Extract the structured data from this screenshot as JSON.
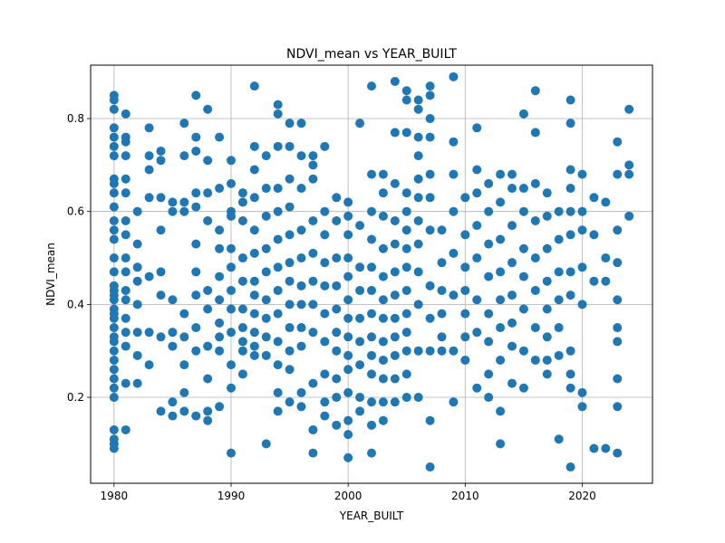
{
  "chart_data": {
    "type": "scatter",
    "title": "NDVI_mean vs YEAR_BUILT",
    "xlabel": "YEAR_BUILT",
    "ylabel": "NDVI_mean",
    "xlim": [
      1978,
      2026
    ],
    "ylim": [
      0.015,
      0.915
    ],
    "x_ticks": [
      1980,
      1990,
      2000,
      2010,
      2020
    ],
    "y_ticks": [
      0.2,
      0.4,
      0.6,
      0.8
    ],
    "y_tick_labels": [
      "0.2",
      "0.4",
      "0.6",
      "0.8"
    ],
    "grid": true,
    "marker_color": "#1f77b4",
    "series": [
      {
        "x": [
          1980,
          1980,
          1980,
          1980,
          1980,
          1980,
          1980,
          1980,
          1980,
          1980,
          1980,
          1980,
          1980,
          1980,
          1980,
          1980,
          1980,
          1980,
          1980,
          1980,
          1980,
          1980,
          1980,
          1980,
          1980,
          1980,
          1980,
          1980,
          1980,
          1980,
          1980,
          1980,
          1980,
          1980,
          1980,
          1980,
          1981,
          1981,
          1981,
          1981,
          1981,
          1981,
          1981,
          1981,
          1981,
          1981,
          1981,
          1981,
          1981,
          1981,
          1981,
          1981,
          1981,
          1982,
          1982,
          1982,
          1982,
          1982,
          1982,
          1982,
          1982,
          1983,
          1983,
          1983,
          1983,
          1983,
          1983,
          1983,
          1984,
          1984,
          1984,
          1984,
          1984,
          1984,
          1984,
          1984,
          1985,
          1985,
          1985,
          1985,
          1985,
          1985,
          1985,
          1986,
          1986,
          1986,
          1986,
          1986,
          1986,
          1986,
          1986,
          1986,
          1987,
          1987,
          1987,
          1987,
          1987,
          1987,
          1987,
          1987,
          1987,
          1987,
          1987,
          1988,
          1988,
          1988,
          1988,
          1988,
          1988,
          1988,
          1988,
          1988,
          1988,
          1989,
          1989,
          1989,
          1989,
          1989,
          1989,
          1989,
          1989,
          1989,
          1989,
          1990,
          1990,
          1990,
          1990,
          1990,
          1990,
          1990,
          1990,
          1990,
          1990,
          1990,
          1990,
          1991,
          1991,
          1991,
          1991,
          1991,
          1991,
          1991,
          1991,
          1991,
          1991,
          1992,
          1992,
          1992,
          1992,
          1992,
          1992,
          1992,
          1992,
          1992,
          1992,
          1992,
          1992,
          1993,
          1993,
          1993,
          1993,
          1993,
          1993,
          1993,
          1993,
          1993,
          1993,
          1994,
          1994,
          1994,
          1994,
          1994,
          1994,
          1994,
          1994,
          1994,
          1994,
          1994,
          1994,
          1994,
          1995,
          1995,
          1995,
          1995,
          1995,
          1995,
          1995,
          1995,
          1995,
          1995,
          1995,
          1995,
          1996,
          1996,
          1996,
          1996,
          1996,
          1996,
          1996,
          1996,
          1996,
          1996,
          1996,
          1997,
          1997,
          1997,
          1997,
          1997,
          1997,
          1997,
          1997,
          1997,
          1997,
          1997,
          1998,
          1998,
          1998,
          1998,
          1998,
          1998,
          1998,
          1998,
          1998,
          1998,
          1999,
          1999,
          1999,
          1999,
          1999,
          1999,
          1999,
          1999,
          1999,
          1999,
          2000,
          2000,
          2000,
          2000,
          2000,
          2000,
          2000,
          2000,
          2000,
          2000,
          2000,
          2000,
          2000,
          2000,
          2001,
          2001,
          2001,
          2001,
          2001,
          2001,
          2001,
          2001,
          2001,
          2002,
          2002,
          2002,
          2002,
          2002,
          2002,
          2002,
          2002,
          2002,
          2002,
          2002,
          2002,
          2002,
          2003,
          2003,
          2003,
          2003,
          2003,
          2003,
          2003,
          2003,
          2003,
          2003,
          2003,
          2003,
          2004,
          2004,
          2004,
          2004,
          2004,
          2004,
          2004,
          2004,
          2004,
          2004,
          2004,
          2004,
          2005,
          2005,
          2005,
          2005,
          2005,
          2005,
          2005,
          2005,
          2005,
          2005,
          2005,
          2005,
          2005,
          2005,
          2006,
          2006,
          2006,
          2006,
          2006,
          2006,
          2006,
          2006,
          2006,
          2006,
          2006,
          2006,
          2007,
          2007,
          2007,
          2007,
          2007,
          2007,
          2007,
          2007,
          2007,
          2007,
          2007,
          2007,
          2008,
          2008,
          2008,
          2008,
          2008,
          2008,
          2009,
          2009,
          2009,
          2009,
          2009,
          2009,
          2009,
          2009,
          2010,
          2010,
          2010,
          2010,
          2010,
          2010,
          2010,
          2011,
          2011,
          2011,
          2011,
          2011,
          2011,
          2011,
          2011,
          2012,
          2012,
          2012,
          2012,
          2012,
          2012,
          2012,
          2012,
          2013,
          2013,
          2013,
          2013,
          2013,
          2013,
          2013,
          2013,
          2013,
          2014,
          2014,
          2014,
          2014,
          2014,
          2014,
          2014,
          2014,
          2015,
          2015,
          2015,
          2015,
          2015,
          2015,
          2015,
          2015,
          2016,
          2016,
          2016,
          2016,
          2016,
          2016,
          2016,
          2016,
          2017,
          2017,
          2017,
          2017,
          2017,
          2017,
          2017,
          2017,
          2018,
          2018,
          2018,
          2018,
          2018,
          2018,
          2018,
          2019,
          2019,
          2019,
          2019,
          2019,
          2019,
          2019,
          2019,
          2019,
          2019,
          2019,
          2019,
          2020,
          2020,
          2020,
          2020,
          2020,
          2020,
          2020,
          2021,
          2021,
          2021,
          2021,
          2022,
          2022,
          2022,
          2022,
          2023,
          2023,
          2023,
          2023,
          2023,
          2023,
          2023,
          2023,
          2023,
          2023,
          2024,
          2024,
          2024,
          2024
        ],
        "y": [
          0.85,
          0.84,
          0.82,
          0.78,
          0.76,
          0.74,
          0.72,
          0.67,
          0.66,
          0.64,
          0.61,
          0.58,
          0.56,
          0.54,
          0.5,
          0.47,
          0.44,
          0.43,
          0.42,
          0.39,
          0.38,
          0.37,
          0.35,
          0.33,
          0.32,
          0.3,
          0.28,
          0.26,
          0.24,
          0.22,
          0.2,
          0.13,
          0.11,
          0.1,
          0.09,
          0.41,
          0.81,
          0.76,
          0.75,
          0.72,
          0.67,
          0.64,
          0.58,
          0.55,
          0.5,
          0.47,
          0.43,
          0.41,
          0.37,
          0.34,
          0.31,
          0.23,
          0.13,
          0.6,
          0.53,
          0.48,
          0.45,
          0.4,
          0.34,
          0.29,
          0.23,
          0.78,
          0.72,
          0.69,
          0.63,
          0.46,
          0.34,
          0.27,
          0.73,
          0.71,
          0.63,
          0.56,
          0.47,
          0.42,
          0.33,
          0.17,
          0.62,
          0.6,
          0.41,
          0.34,
          0.31,
          0.19,
          0.16,
          0.79,
          0.72,
          0.62,
          0.6,
          0.38,
          0.33,
          0.27,
          0.21,
          0.17,
          0.85,
          0.76,
          0.73,
          0.64,
          0.61,
          0.53,
          0.47,
          0.42,
          0.35,
          0.3,
          0.16,
          0.82,
          0.71,
          0.64,
          0.58,
          0.43,
          0.39,
          0.31,
          0.24,
          0.17,
          0.15,
          0.76,
          0.65,
          0.56,
          0.52,
          0.46,
          0.41,
          0.36,
          0.33,
          0.3,
          0.18,
          0.71,
          0.66,
          0.59,
          0.52,
          0.48,
          0.43,
          0.39,
          0.34,
          0.27,
          0.22,
          0.08,
          0.6,
          0.64,
          0.58,
          0.5,
          0.45,
          0.39,
          0.35,
          0.32,
          0.3,
          0.25,
          0.62,
          0.87,
          0.74,
          0.69,
          0.63,
          0.56,
          0.51,
          0.45,
          0.42,
          0.38,
          0.34,
          0.31,
          0.29,
          0.72,
          0.65,
          0.59,
          0.52,
          0.47,
          0.41,
          0.37,
          0.33,
          0.29,
          0.1,
          0.83,
          0.81,
          0.74,
          0.65,
          0.6,
          0.54,
          0.48,
          0.43,
          0.38,
          0.32,
          0.27,
          0.21,
          0.17,
          0.79,
          0.74,
          0.67,
          0.61,
          0.55,
          0.49,
          0.45,
          0.4,
          0.35,
          0.3,
          0.26,
          0.19,
          0.79,
          0.72,
          0.65,
          0.56,
          0.5,
          0.44,
          0.4,
          0.35,
          0.31,
          0.21,
          0.18,
          0.72,
          0.7,
          0.67,
          0.58,
          0.51,
          0.45,
          0.4,
          0.34,
          0.23,
          0.13,
          0.08,
          0.74,
          0.6,
          0.55,
          0.49,
          0.44,
          0.38,
          0.32,
          0.25,
          0.19,
          0.16,
          0.63,
          0.58,
          0.5,
          0.44,
          0.39,
          0.34,
          0.3,
          0.24,
          0.2,
          0.14,
          0.62,
          0.59,
          0.55,
          0.5,
          0.46,
          0.41,
          0.37,
          0.33,
          0.29,
          0.26,
          0.21,
          0.15,
          0.12,
          0.07,
          0.79,
          0.57,
          0.48,
          0.43,
          0.37,
          0.32,
          0.27,
          0.2,
          0.17,
          0.87,
          0.68,
          0.6,
          0.54,
          0.48,
          0.43,
          0.38,
          0.33,
          0.29,
          0.25,
          0.19,
          0.14,
          0.08,
          0.68,
          0.64,
          0.59,
          0.52,
          0.46,
          0.41,
          0.37,
          0.32,
          0.28,
          0.24,
          0.19,
          0.15,
          0.88,
          0.77,
          0.66,
          0.58,
          0.53,
          0.47,
          0.42,
          0.37,
          0.33,
          0.29,
          0.24,
          0.19,
          0.86,
          0.84,
          0.77,
          0.64,
          0.6,
          0.56,
          0.52,
          0.48,
          0.43,
          0.38,
          0.34,
          0.3,
          0.25,
          0.2,
          0.84,
          0.82,
          0.76,
          0.72,
          0.67,
          0.63,
          0.58,
          0.53,
          0.47,
          0.4,
          0.3,
          0.2,
          0.87,
          0.85,
          0.8,
          0.76,
          0.68,
          0.63,
          0.56,
          0.44,
          0.37,
          0.3,
          0.15,
          0.05,
          0.56,
          0.49,
          0.43,
          0.38,
          0.33,
          0.3,
          0.89,
          0.75,
          0.68,
          0.6,
          0.51,
          0.42,
          0.3,
          0.19,
          0.63,
          0.55,
          0.48,
          0.43,
          0.38,
          0.33,
          0.28,
          0.78,
          0.69,
          0.64,
          0.57,
          0.5,
          0.41,
          0.34,
          0.22,
          0.66,
          0.6,
          0.53,
          0.46,
          0.38,
          0.32,
          0.25,
          0.2,
          0.68,
          0.62,
          0.54,
          0.47,
          0.41,
          0.35,
          0.28,
          0.17,
          0.1,
          0.68,
          0.65,
          0.57,
          0.49,
          0.42,
          0.36,
          0.31,
          0.23,
          0.81,
          0.65,
          0.6,
          0.52,
          0.46,
          0.39,
          0.3,
          0.22,
          0.86,
          0.77,
          0.66,
          0.58,
          0.5,
          0.43,
          0.35,
          0.28,
          0.64,
          0.59,
          0.52,
          0.45,
          0.39,
          0.33,
          0.28,
          0.25,
          0.6,
          0.54,
          0.47,
          0.41,
          0.35,
          0.29,
          0.11,
          0.84,
          0.79,
          0.69,
          0.65,
          0.6,
          0.55,
          0.47,
          0.42,
          0.3,
          0.25,
          0.22,
          0.05,
          0.68,
          0.6,
          0.56,
          0.48,
          0.4,
          0.21,
          0.18,
          0.63,
          0.55,
          0.45,
          0.09,
          0.62,
          0.5,
          0.45,
          0.09,
          0.75,
          0.68,
          0.56,
          0.49,
          0.41,
          0.35,
          0.32,
          0.24,
          0.18,
          0.08,
          0.82,
          0.7,
          0.68,
          0.59
        ]
      }
    ]
  }
}
